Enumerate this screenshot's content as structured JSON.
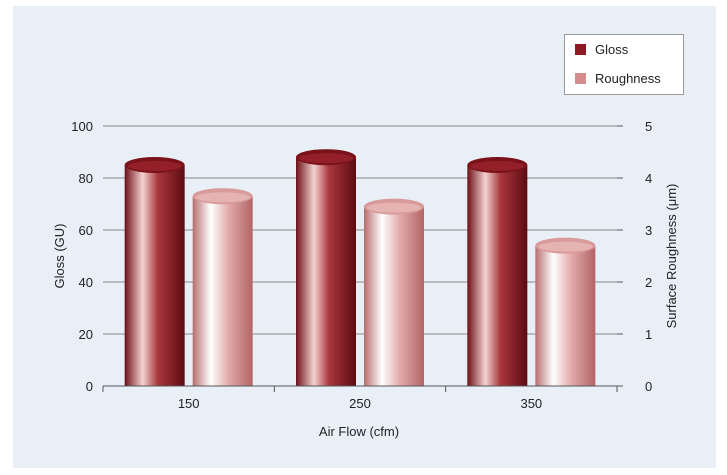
{
  "chart_data": {
    "type": "bar",
    "categories": [
      "150",
      "250",
      "350"
    ],
    "series": [
      {
        "name": "Gloss",
        "axis": "left",
        "values": [
          85,
          88,
          85
        ],
        "color": "#8b1a22"
      },
      {
        "name": "Roughness",
        "axis": "right",
        "values": [
          3.65,
          3.45,
          2.7
        ],
        "color": "#d58c8c"
      }
    ],
    "xlabel": "Air Flow (cfm)",
    "ylabel": "Gloss (GU)",
    "y2label": "Surface Roughness (μm)",
    "ylim": [
      0,
      100
    ],
    "y2lim": [
      0,
      5
    ],
    "yticks": [
      "0",
      "20",
      "40",
      "60",
      "80",
      "100"
    ],
    "y2ticks": [
      "0",
      "1",
      "2",
      "3",
      "4",
      "5"
    ],
    "grid": true,
    "legend_position": "top-right",
    "bar_style": "cylinder"
  }
}
